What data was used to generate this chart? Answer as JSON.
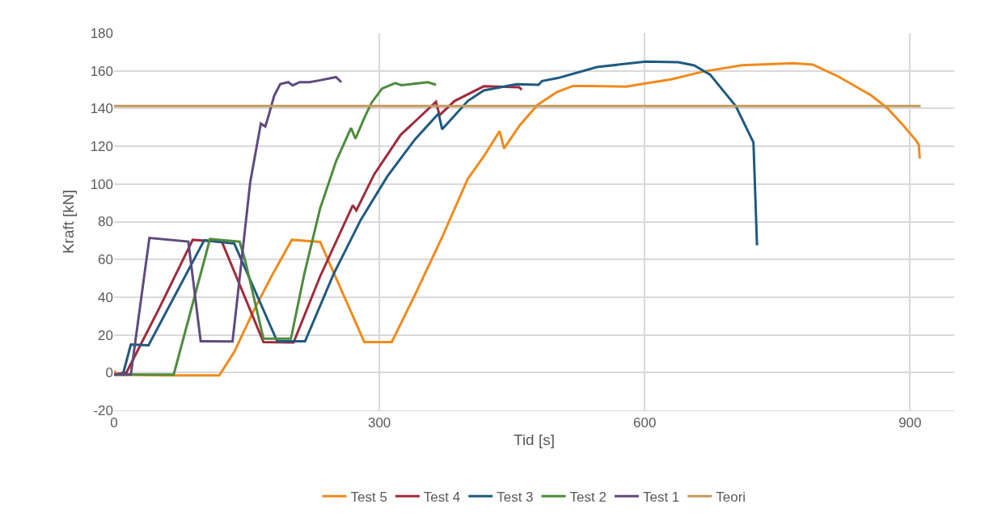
{
  "chart_data": {
    "type": "line",
    "xlabel": "Tid [s]",
    "ylabel": "Kraft [kN]",
    "xlim": [
      0,
      950
    ],
    "xticks": [
      0,
      300,
      600,
      900
    ],
    "ylim": [
      -20,
      180
    ],
    "yticks": [
      -20,
      0,
      20,
      40,
      60,
      80,
      100,
      120,
      140,
      160,
      180
    ],
    "grid": true,
    "legend": "bottom",
    "marker": "none",
    "line_style": "solid",
    "series": [
      {
        "name": "Test 5",
        "color": "#f08a1c",
        "x": [
          0,
          3,
          60,
          119,
          136,
          157,
          178,
          201,
          233,
          283,
          314,
          340,
          370,
          400,
          418,
          436,
          441,
          459,
          479,
          501,
          519,
          537,
          579,
          601,
          630,
          666,
          710,
          768,
          790,
          819,
          856,
          874,
          892,
          907,
          910,
          911
        ],
        "values": [
          1,
          -1,
          -1.5,
          -1.5,
          11,
          32,
          51,
          70.4,
          69.3,
          16.2,
          16.2,
          41,
          70.8,
          102.7,
          114.6,
          128,
          118.8,
          131.3,
          142,
          148.8,
          152,
          152,
          151.6,
          153.3,
          155.5,
          159.6,
          163,
          164,
          163.3,
          157,
          147,
          140.4,
          131.3,
          123,
          120.7,
          113.5
        ]
      },
      {
        "name": "Test 4",
        "color": "#9e2b3b",
        "x": [
          0,
          14,
          51,
          89,
          122,
          169,
          203,
          233,
          270,
          274,
          294,
          324,
          364,
          368,
          385,
          418,
          458,
          461
        ],
        "values": [
          -1,
          0,
          34,
          70.4,
          69.3,
          16.2,
          16,
          51,
          88.7,
          86,
          105,
          126,
          143.6,
          136.5,
          144,
          151.8,
          151.3,
          150
        ]
      },
      {
        "name": "Test 3",
        "color": "#1f5a80",
        "x": [
          0,
          10,
          19,
          39,
          102,
          136,
          184.5,
          216,
          248,
          279,
          309,
          340,
          367,
          371,
          400,
          418,
          455,
          480,
          484,
          502,
          546,
          601,
          638,
          656,
          674,
          703,
          723,
          727
        ],
        "values": [
          -1,
          -1,
          14.9,
          14.5,
          70.2,
          68.4,
          16.6,
          16.6,
          52,
          81,
          104,
          123.5,
          137.4,
          129,
          144,
          149.6,
          152.9,
          152.6,
          154.6,
          156.2,
          162,
          164.9,
          164.6,
          162.9,
          158,
          141.3,
          122,
          67.5
        ]
      },
      {
        "name": "Test 2",
        "color": "#4e8b3d",
        "x": [
          0,
          67.5,
          108.5,
          142,
          148,
          169,
          200,
          215,
          233,
          251,
          268,
          273,
          282,
          291,
          303,
          318,
          325,
          355,
          364
        ],
        "values": [
          -1,
          -1,
          70.8,
          69.4,
          60,
          18,
          18,
          52,
          87,
          112,
          129.7,
          124,
          134,
          143,
          150.6,
          153.5,
          152.4,
          154,
          152.6
        ]
      },
      {
        "name": "Test 1",
        "color": "#5f4a7d",
        "x": [
          0,
          19,
          40,
          84,
          98,
          134,
          142,
          154,
          166,
          171,
          174,
          181,
          188,
          197,
          202,
          210,
          221,
          233,
          251,
          257
        ],
        "values": [
          -1,
          -1,
          71.4,
          69.5,
          16.6,
          16.5,
          50,
          101,
          132,
          130.5,
          135,
          146.7,
          153,
          154,
          152.3,
          154,
          154,
          155,
          156.7,
          154
        ]
      },
      {
        "name": "Teori",
        "color": "#c4995a",
        "x": [
          0,
          912
        ],
        "values": [
          141.4,
          141.4
        ]
      }
    ]
  }
}
